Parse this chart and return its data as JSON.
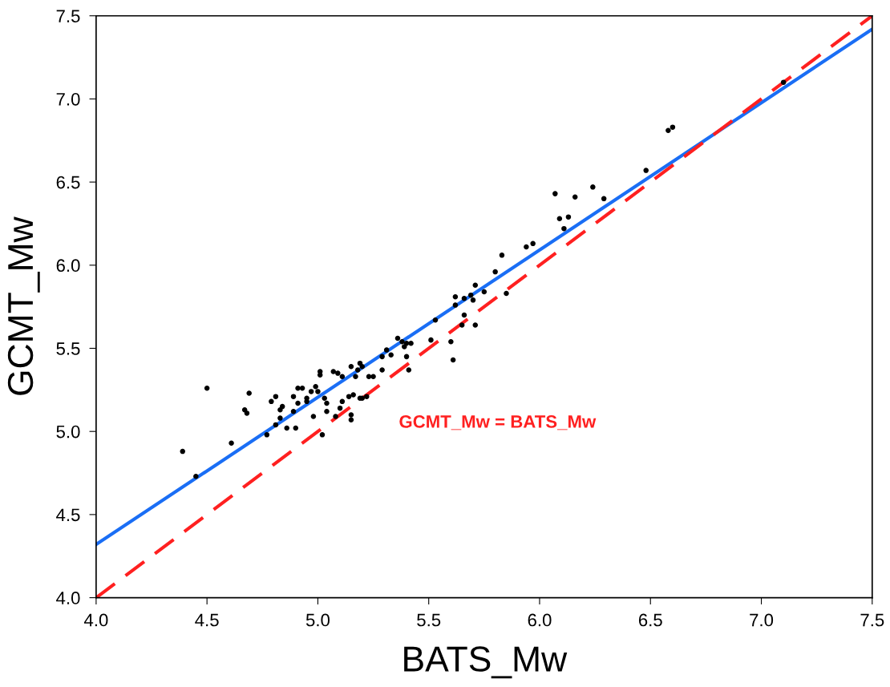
{
  "chart_data": {
    "type": "scatter",
    "xlabel": "BATS_Mw",
    "ylabel": "GCMT_Mw",
    "xlim": [
      4.0,
      7.5
    ],
    "ylim": [
      4.0,
      7.5
    ],
    "xticks": [
      {
        "value": 4.0,
        "label": "4.0"
      },
      {
        "value": 4.5,
        "label": "4.5"
      },
      {
        "value": 5.0,
        "label": "5.0"
      },
      {
        "value": 5.5,
        "label": "5.5"
      },
      {
        "value": 6.0,
        "label": "6.0"
      },
      {
        "value": 6.5,
        "label": "6.5"
      },
      {
        "value": 7.0,
        "label": "7.0"
      },
      {
        "value": 7.5,
        "label": "7.5"
      }
    ],
    "yticks": [
      {
        "value": 4.0,
        "label": "4.0"
      },
      {
        "value": 4.5,
        "label": "4.5"
      },
      {
        "value": 5.0,
        "label": "5.0"
      },
      {
        "value": 5.5,
        "label": "5.5"
      },
      {
        "value": 6.0,
        "label": "6.0"
      },
      {
        "value": 6.5,
        "label": "6.5"
      },
      {
        "value": 7.0,
        "label": "7.0"
      },
      {
        "value": 7.5,
        "label": "7.5"
      }
    ],
    "grid": false,
    "legend": false,
    "series": [
      {
        "marker": "circle",
        "color": "#000000",
        "x": [
          4.39,
          4.5,
          4.45,
          4.61,
          4.67,
          4.68,
          4.69,
          4.77,
          4.79,
          4.81,
          4.81,
          4.83,
          4.84,
          4.83,
          4.86,
          4.89,
          4.9,
          4.89,
          4.91,
          4.93,
          4.91,
          4.95,
          4.95,
          4.97,
          4.98,
          4.99,
          5.0,
          5.01,
          5.01,
          5.02,
          5.03,
          5.04,
          5.04,
          5.07,
          5.09,
          5.08,
          5.1,
          5.11,
          5.11,
          5.14,
          5.15,
          5.15,
          5.15,
          5.16,
          5.17,
          5.18,
          5.19,
          5.2,
          5.19,
          5.2,
          5.22,
          5.23,
          5.25,
          5.29,
          5.29,
          5.31,
          5.33,
          5.36,
          5.38,
          5.4,
          5.42,
          5.39,
          5.4,
          5.41,
          5.51,
          5.53,
          5.6,
          5.61,
          5.62,
          5.62,
          5.65,
          5.66,
          5.66,
          5.69,
          5.7,
          5.71,
          5.71,
          5.75,
          5.8,
          5.83,
          5.85,
          5.94,
          5.97,
          6.07,
          6.09,
          6.11,
          6.13,
          6.16,
          6.24,
          6.29,
          6.48,
          6.58,
          6.6,
          7.1
        ],
        "values": [
          4.88,
          5.26,
          4.73,
          4.93,
          5.13,
          5.11,
          5.23,
          4.98,
          5.18,
          5.21,
          5.04,
          5.13,
          5.15,
          5.08,
          5.02,
          5.12,
          5.02,
          5.21,
          5.26,
          5.26,
          5.17,
          5.2,
          5.18,
          5.24,
          5.09,
          5.27,
          5.24,
          5.34,
          5.36,
          4.98,
          5.2,
          5.17,
          5.12,
          5.36,
          5.35,
          5.09,
          5.14,
          5.18,
          5.33,
          5.21,
          5.1,
          5.39,
          5.07,
          5.22,
          5.33,
          5.37,
          5.41,
          5.39,
          5.2,
          5.2,
          5.21,
          5.33,
          5.33,
          5.45,
          5.37,
          5.49,
          5.46,
          5.56,
          5.54,
          5.53,
          5.53,
          5.51,
          5.45,
          5.37,
          5.55,
          5.67,
          5.54,
          5.43,
          5.81,
          5.76,
          5.64,
          5.7,
          5.8,
          5.82,
          5.79,
          5.64,
          5.88,
          5.84,
          5.96,
          6.06,
          5.83,
          6.11,
          6.13,
          6.43,
          6.28,
          6.22,
          6.29,
          6.41,
          6.47,
          6.4,
          6.57,
          6.81,
          6.83,
          7.1
        ]
      },
      {
        "type": "line",
        "color": "#1a6ef5",
        "x": [
          4.0,
          7.5
        ],
        "values": [
          4.32,
          7.42
        ],
        "line_style": "solid"
      },
      {
        "type": "line",
        "name": "GCMT_Mw = BATS_Mw",
        "color": "#ff2020",
        "x": [
          4.0,
          7.5
        ],
        "values": [
          4.0,
          7.5
        ],
        "line_style": "dashed"
      }
    ]
  }
}
